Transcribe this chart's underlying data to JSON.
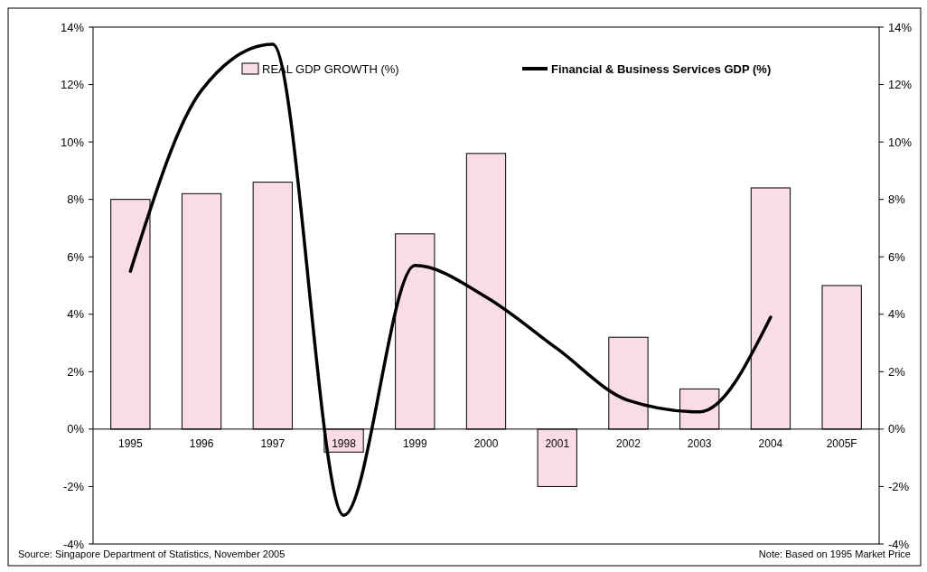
{
  "chart_data": {
    "type": "bar",
    "categories": [
      "1995",
      "1996",
      "1997",
      "1998",
      "1999",
      "2000",
      "2001",
      "2002",
      "2003",
      "2004",
      "2005F"
    ],
    "series": [
      {
        "name": "REAL GDP GROWTH (%)",
        "color": "#fadce6",
        "values": [
          8.0,
          8.2,
          8.6,
          -0.8,
          6.8,
          9.6,
          -2.0,
          3.2,
          1.4,
          8.4,
          5.0
        ]
      },
      {
        "name": "Financial & Business Services GDP (%)",
        "type": "line",
        "axis": "y2",
        "color": "#000000",
        "values": [
          5.5,
          11.8,
          13.4,
          -3.0,
          5.7,
          4.6,
          2.8,
          1.0,
          0.6,
          3.9,
          null
        ]
      }
    ],
    "ylim": [
      -4,
      14
    ],
    "yticks": [
      {
        "value": -4,
        "label": "-4%"
      },
      {
        "value": -2,
        "label": "-2%"
      },
      {
        "value": 0,
        "label": "0%"
      },
      {
        "value": 2,
        "label": "2%"
      },
      {
        "value": 4,
        "label": "4%"
      },
      {
        "value": 6,
        "label": "6%"
      },
      {
        "value": 8,
        "label": "8%"
      },
      {
        "value": 10,
        "label": "10%"
      },
      {
        "value": 12,
        "label": "12%"
      },
      {
        "value": 14,
        "label": "14%"
      }
    ],
    "y2lim": [
      -4,
      14
    ],
    "y2ticks": [
      {
        "value": -4,
        "label": "-4%"
      },
      {
        "value": -2,
        "label": "-2%"
      },
      {
        "value": 0,
        "label": "0%"
      },
      {
        "value": 2,
        "label": "2%"
      },
      {
        "value": 4,
        "label": "4%"
      },
      {
        "value": 6,
        "label": "6%"
      },
      {
        "value": 8,
        "label": "8%"
      },
      {
        "value": 10,
        "label": "10%"
      },
      {
        "value": 12,
        "label": "12%"
      },
      {
        "value": 14,
        "label": "14%"
      }
    ],
    "legend": "top",
    "grid": false,
    "annotations": [
      "Source: Singapore Department of Statistics, November 2005",
      "Note: Based on 1995 Market Price"
    ]
  }
}
